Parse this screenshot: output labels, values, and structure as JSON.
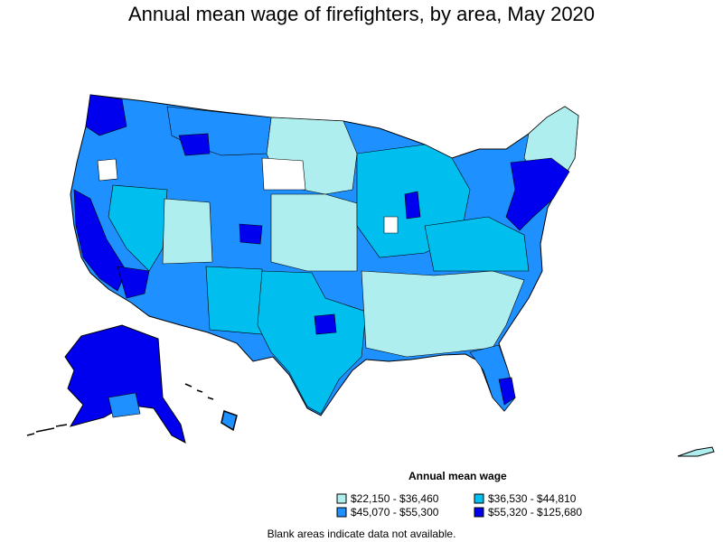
{
  "title": "Annual mean wage of firefighters, by area, May 2020",
  "legend": {
    "title": "Annual mean wage",
    "items": [
      {
        "label": "$22,150 - $36,460",
        "color": "#aeeeee"
      },
      {
        "label": "$36,530 - $44,810",
        "color": "#00bfef"
      },
      {
        "label": "$45,070 - $55,300",
        "color": "#1e90ff"
      },
      {
        "label": "$55,320 - $125,680",
        "color": "#0000ee"
      }
    ]
  },
  "note": "Blank areas indicate data not available.",
  "colors": {
    "no_data": "#ffffff",
    "border": "#000000"
  }
}
